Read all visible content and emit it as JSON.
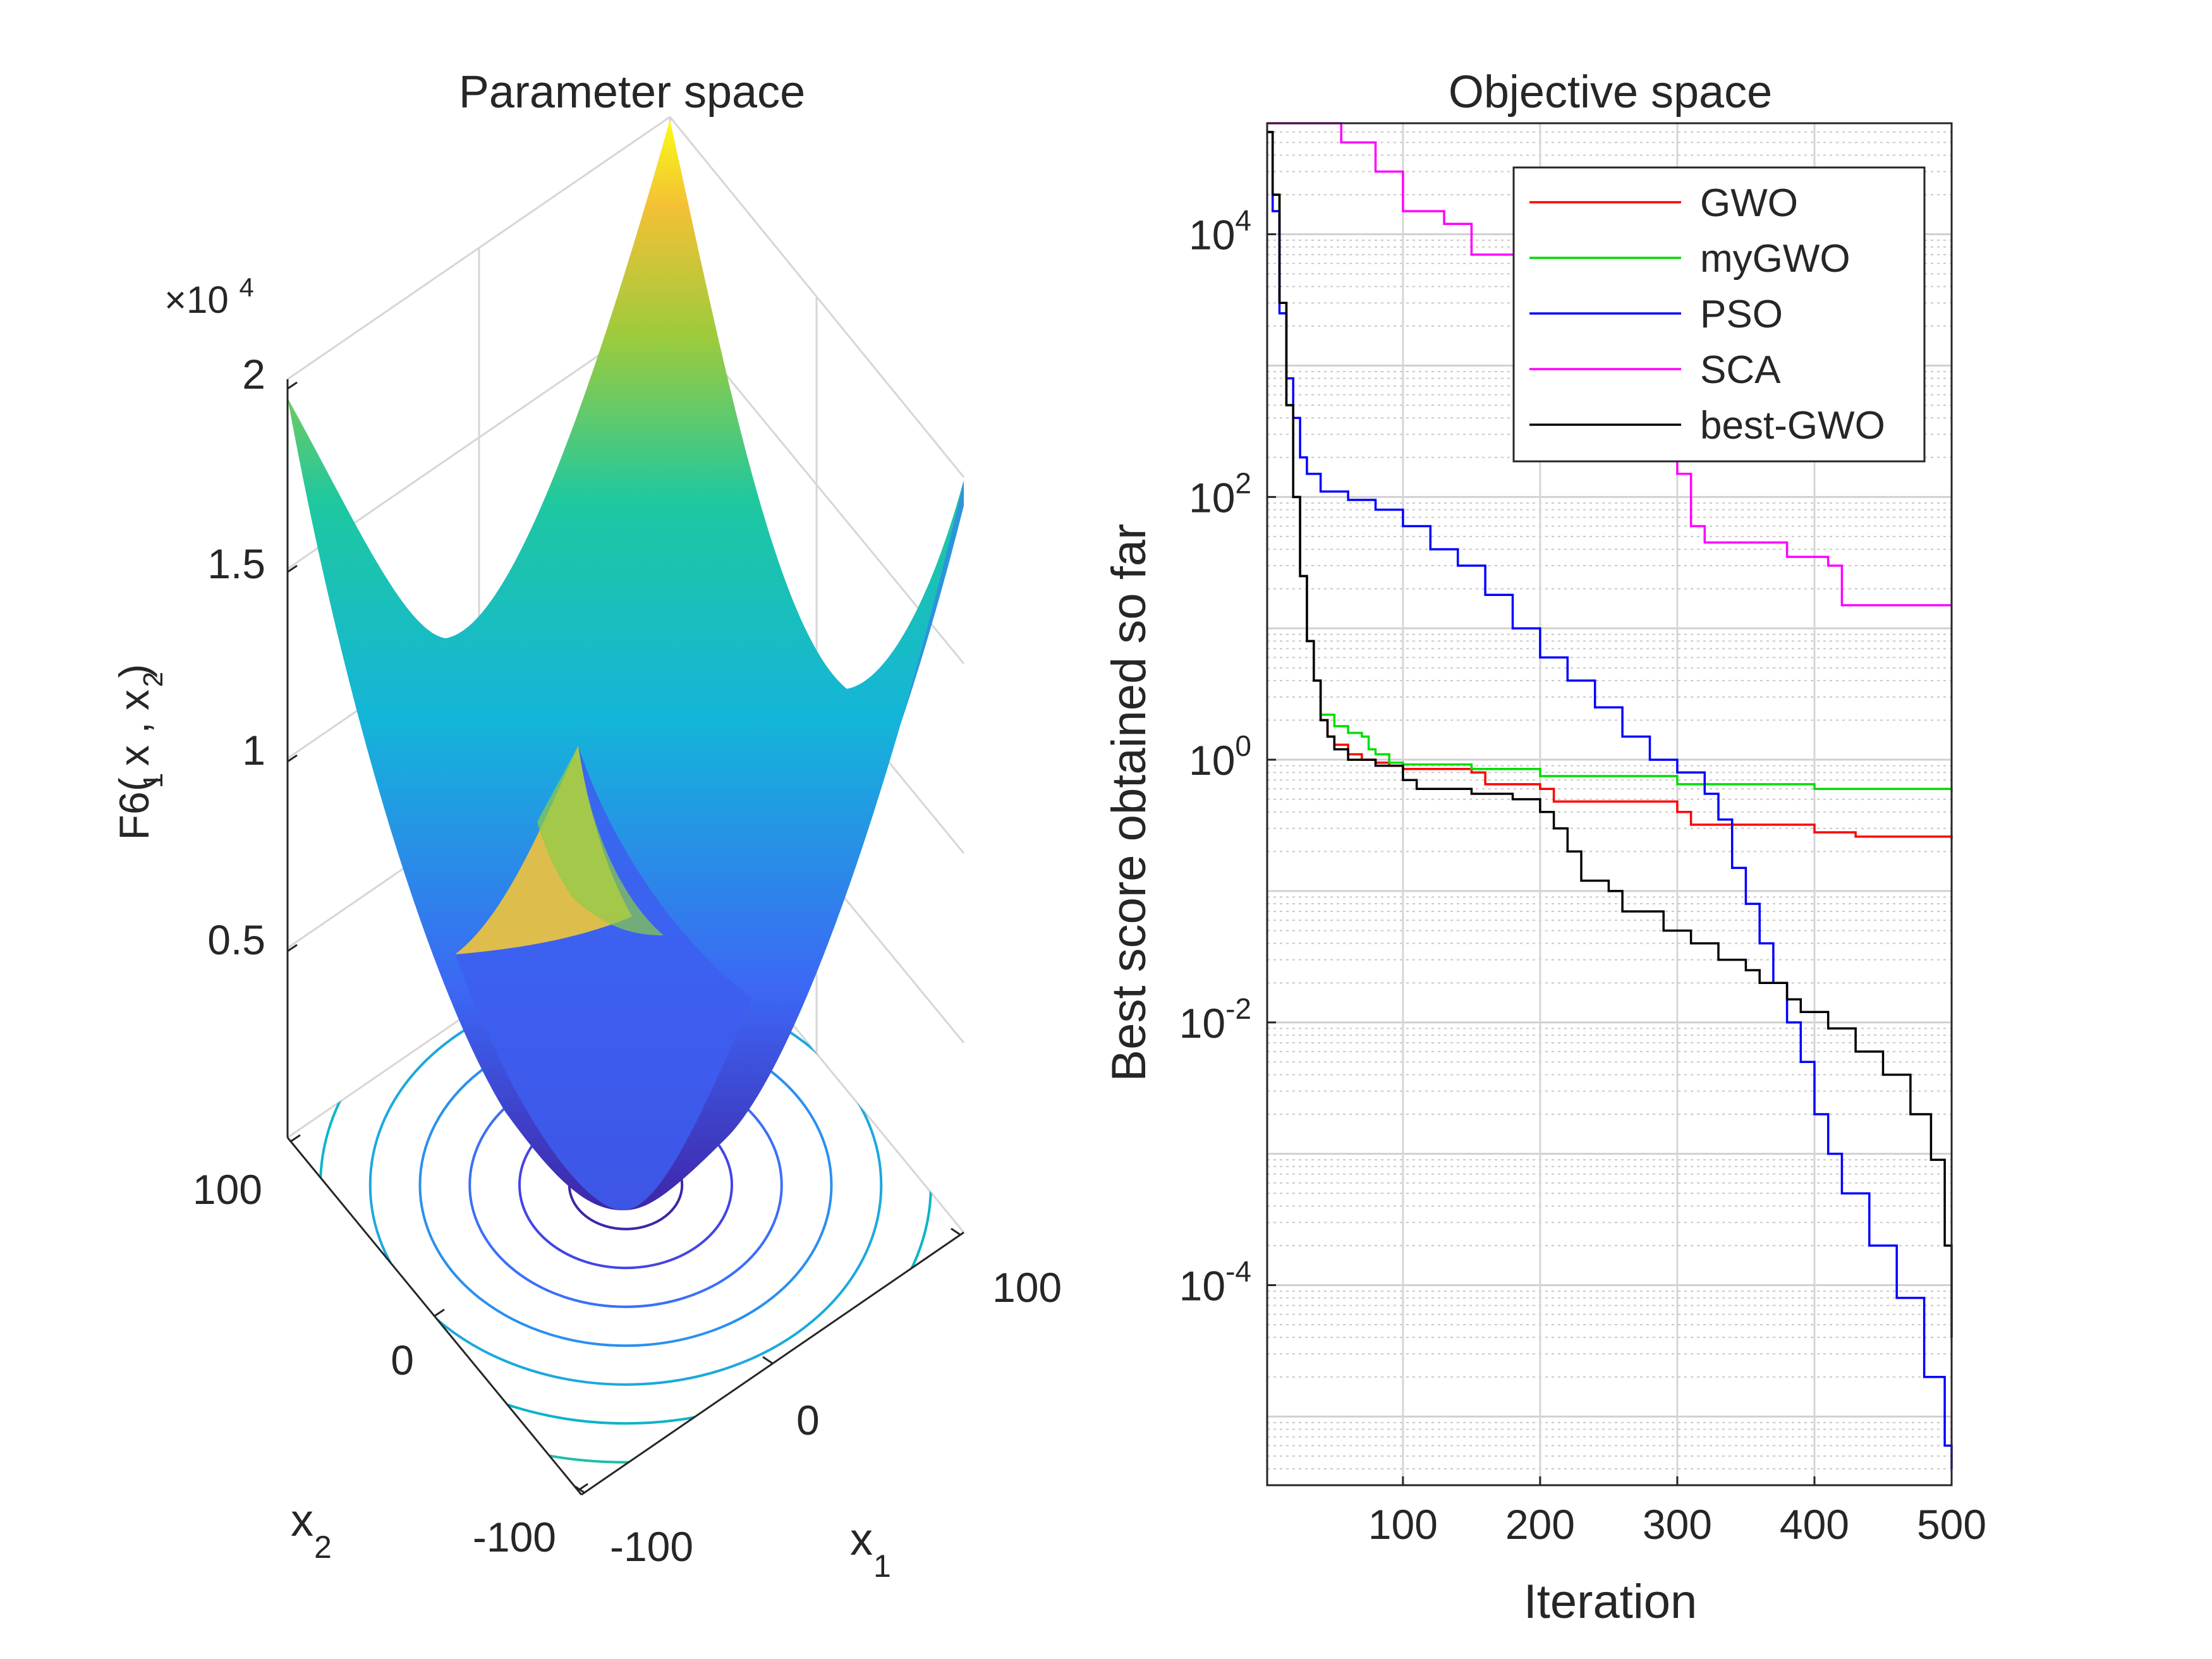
{
  "chart_data": [
    {
      "type": "surface",
      "title": "Parameter space",
      "xlabel": "x",
      "xlabel_sub": "1",
      "ylabel": "x",
      "ylabel_sub": "2",
      "zlabel": "F6( x   , x   )",
      "zlabel_sub1": "1",
      "zlabel_sub2": "2",
      "z_exponent_prefix": "×10",
      "z_exponent_power": "4",
      "x_ticks": [
        "-100",
        "0",
        "100"
      ],
      "y_ticks": [
        "-100",
        "0",
        "100"
      ],
      "z_ticks": [
        "0.5",
        "1",
        "1.5",
        "2"
      ],
      "x_range": [
        -100,
        100
      ],
      "y_range": [
        -100,
        100
      ],
      "z_range": [
        0,
        20000
      ],
      "function": "sum of squares x1^2 + x2^2",
      "colormap": "parula",
      "contours_on_floor": true
    },
    {
      "type": "line",
      "title": "Objective space",
      "xlabel": "Iteration",
      "ylabel": "Best score obtained so far",
      "yscale": "log",
      "xlim": [
        1,
        500
      ],
      "ylim": [
        3e-06,
        70000
      ],
      "x_ticks": [
        "100",
        "200",
        "300",
        "400",
        "500"
      ],
      "y_ticks": [
        {
          "base": "10",
          "exp": "4",
          "value": 10000
        },
        {
          "base": "10",
          "exp": "2",
          "value": 100
        },
        {
          "base": "10",
          "exp": "0",
          "value": 1
        },
        {
          "base": "10",
          "exp": "-2",
          "value": 0.01
        },
        {
          "base": "10",
          "exp": "-4",
          "value": 0.0001
        }
      ],
      "grid": true,
      "legend_position": "top-right",
      "series": [
        {
          "name": "GWO",
          "color": "#ff0000",
          "points": [
            [
              1,
              60000
            ],
            [
              5,
              20000
            ],
            [
              10,
              3000
            ],
            [
              15,
              500
            ],
            [
              20,
              100
            ],
            [
              25,
              25
            ],
            [
              30,
              8
            ],
            [
              35,
              4
            ],
            [
              40,
              2
            ],
            [
              45,
              1.5
            ],
            [
              50,
              1.3
            ],
            [
              60,
              1.1
            ],
            [
              70,
              1.0
            ],
            [
              80,
              0.95
            ],
            [
              90,
              0.9
            ],
            [
              100,
              0.85
            ],
            [
              150,
              0.8
            ],
            [
              160,
              0.65
            ],
            [
              200,
              0.6
            ],
            [
              210,
              0.48
            ],
            [
              300,
              0.4
            ],
            [
              310,
              0.32
            ],
            [
              400,
              0.28
            ],
            [
              430,
              0.26
            ],
            [
              500,
              0.25
            ]
          ]
        },
        {
          "name": "myGWO",
          "color": "#00dd00",
          "points": [
            [
              1,
              60000
            ],
            [
              5,
              20000
            ],
            [
              10,
              3000
            ],
            [
              15,
              500
            ],
            [
              20,
              100
            ],
            [
              25,
              25
            ],
            [
              30,
              8
            ],
            [
              35,
              4
            ],
            [
              40,
              2.2
            ],
            [
              50,
              1.8
            ],
            [
              60,
              1.6
            ],
            [
              70,
              1.5
            ],
            [
              75,
              1.2
            ],
            [
              80,
              1.1
            ],
            [
              90,
              0.95
            ],
            [
              100,
              0.92
            ],
            [
              150,
              0.85
            ],
            [
              200,
              0.75
            ],
            [
              300,
              0.65
            ],
            [
              400,
              0.6
            ],
            [
              500,
              0.57
            ]
          ]
        },
        {
          "name": "PSO",
          "color": "#0000ff",
          "points": [
            [
              1,
              60000
            ],
            [
              5,
              15000
            ],
            [
              10,
              2500
            ],
            [
              15,
              800
            ],
            [
              20,
              400
            ],
            [
              25,
              200
            ],
            [
              30,
              150
            ],
            [
              40,
              110
            ],
            [
              60,
              95
            ],
            [
              80,
              80
            ],
            [
              100,
              60
            ],
            [
              120,
              40
            ],
            [
              140,
              30
            ],
            [
              160,
              18
            ],
            [
              180,
              10
            ],
            [
              200,
              6
            ],
            [
              220,
              4
            ],
            [
              240,
              2.5
            ],
            [
              260,
              1.5
            ],
            [
              280,
              1.0
            ],
            [
              300,
              0.8
            ],
            [
              320,
              0.55
            ],
            [
              330,
              0.35
            ],
            [
              340,
              0.15
            ],
            [
              350,
              0.08
            ],
            [
              360,
              0.04
            ],
            [
              370,
              0.02
            ],
            [
              380,
              0.01
            ],
            [
              390,
              0.005
            ],
            [
              400,
              0.002
            ],
            [
              410,
              0.001
            ],
            [
              420,
              0.0005
            ],
            [
              440,
              0.0002
            ],
            [
              460,
              8e-05
            ],
            [
              480,
              2e-05
            ],
            [
              495,
              6e-06
            ],
            [
              500,
              4e-06
            ]
          ]
        },
        {
          "name": "SCA",
          "color": "#ff00ff",
          "points": [
            [
              1,
              70000
            ],
            [
              30,
              70000
            ],
            [
              45,
              70000
            ],
            [
              55,
              50000
            ],
            [
              80,
              30000
            ],
            [
              100,
              15000
            ],
            [
              130,
              12000
            ],
            [
              150,
              7000
            ],
            [
              200,
              6000
            ],
            [
              220,
              3000
            ],
            [
              250,
              1500
            ],
            [
              260,
              1000
            ],
            [
              280,
              700
            ],
            [
              300,
              150
            ],
            [
              310,
              60
            ],
            [
              320,
              45
            ],
            [
              350,
              45
            ],
            [
              380,
              35
            ],
            [
              410,
              30
            ],
            [
              420,
              15
            ],
            [
              450,
              15
            ],
            [
              500,
              15
            ]
          ]
        },
        {
          "name": "best-GWO",
          "color": "#000000",
          "points": [
            [
              1,
              60000
            ],
            [
              5,
              20000
            ],
            [
              10,
              3000
            ],
            [
              15,
              500
            ],
            [
              20,
              100
            ],
            [
              25,
              25
            ],
            [
              30,
              8
            ],
            [
              35,
              4
            ],
            [
              40,
              2
            ],
            [
              45,
              1.5
            ],
            [
              50,
              1.2
            ],
            [
              60,
              1.0
            ],
            [
              80,
              0.9
            ],
            [
              100,
              0.7
            ],
            [
              110,
              0.6
            ],
            [
              150,
              0.55
            ],
            [
              180,
              0.5
            ],
            [
              200,
              0.4
            ],
            [
              210,
              0.3
            ],
            [
              220,
              0.2
            ],
            [
              230,
              0.12
            ],
            [
              250,
              0.1
            ],
            [
              260,
              0.07
            ],
            [
              290,
              0.05
            ],
            [
              310,
              0.04
            ],
            [
              330,
              0.03
            ],
            [
              350,
              0.025
            ],
            [
              360,
              0.02
            ],
            [
              380,
              0.015
            ],
            [
              390,
              0.012
            ],
            [
              410,
              0.009
            ],
            [
              430,
              0.006
            ],
            [
              450,
              0.004
            ],
            [
              470,
              0.002
            ],
            [
              485,
              0.0009
            ],
            [
              495,
              0.0002
            ],
            [
              500,
              4e-05
            ]
          ]
        }
      ]
    }
  ]
}
